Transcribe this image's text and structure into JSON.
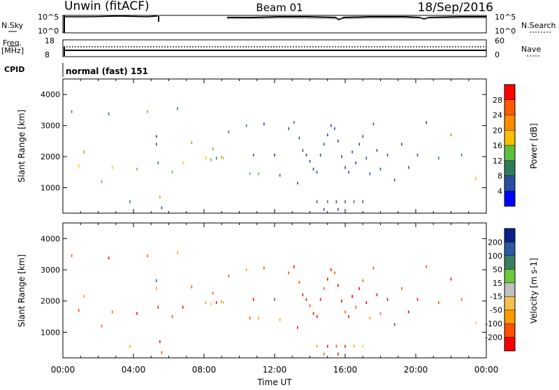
{
  "header": {
    "station": "Unwin (fitACF)",
    "beam": "Beam 01",
    "date": "18/Sep/2016"
  },
  "top_panels": {
    "nsky_label": "N.Sky",
    "nsky_ticks": [
      "10^5",
      "10^0"
    ],
    "nsearch_label": "N.Search",
    "nsearch_ticks": [
      "10^5",
      "10^0"
    ],
    "freq_label": "Freq.",
    "freq_unit": "[MHz]",
    "freq_ticks": [
      "18",
      "8"
    ],
    "nave_label": "Nave",
    "nave_ticks": [
      "60",
      "0"
    ],
    "cpid_label": "CPID",
    "cpid_text": "normal (fast) 151"
  },
  "colors": {
    "power": [
      "#0000ff",
      "#2a4fa0",
      "#2e7d5a",
      "#5fbf3f",
      "#f5c000",
      "#ff8c00",
      "#ff5a00",
      "#ff0000"
    ],
    "velocity": [
      "#ff0000",
      "#ff5000",
      "#ff9a00",
      "#f5c050",
      "#c0c0c0",
      "#6ac93c",
      "#3a8060",
      "#2a5aa0",
      "#0a1f8a"
    ]
  },
  "chart_data": [
    {
      "type": "heatmap",
      "name": "Power",
      "xlabel": "",
      "ylabel": "Slant Range [km]",
      "x_ticks": [
        "00:00",
        "04:00",
        "08:00",
        "12:00",
        "16:00",
        "20:00",
        "00:00"
      ],
      "xlim": [
        0,
        24
      ],
      "ylim": [
        180,
        4500
      ],
      "y_ticks": [
        1000,
        2000,
        3000,
        4000
      ],
      "colorbar_label": "Power [dB]",
      "colorbar_ticks": [
        "4",
        "8",
        "12",
        "16",
        "20",
        "24",
        "28"
      ],
      "points": [
        [
          0.5,
          3450,
          2
        ],
        [
          0.9,
          1700,
          4
        ],
        [
          1.2,
          2150,
          3
        ],
        [
          2.2,
          1200,
          3
        ],
        [
          2.6,
          3380,
          2
        ],
        [
          2.8,
          1650,
          4
        ],
        [
          3.8,
          550,
          2
        ],
        [
          4.2,
          1600,
          3
        ],
        [
          4.8,
          3450,
          3
        ],
        [
          5.3,
          2650,
          1
        ],
        [
          5.3,
          2400,
          1
        ],
        [
          5.4,
          1800,
          2
        ],
        [
          5.6,
          350,
          1
        ],
        [
          5.5,
          700,
          5
        ],
        [
          6.2,
          1500,
          3
        ],
        [
          6.5,
          3550,
          2
        ],
        [
          6.8,
          1800,
          4
        ],
        [
          7.3,
          2450,
          3
        ],
        [
          8.1,
          1950,
          4
        ],
        [
          8.4,
          1900,
          3
        ],
        [
          8.5,
          2250,
          3
        ],
        [
          8.7,
          1950,
          2
        ],
        [
          9.0,
          1980,
          3
        ],
        [
          9.1,
          1950,
          4
        ],
        [
          9.4,
          2800,
          2
        ],
        [
          10.4,
          3000,
          2
        ],
        [
          10.6,
          1450,
          3
        ],
        [
          10.8,
          2050,
          1
        ],
        [
          11.1,
          1450,
          3
        ],
        [
          11.4,
          3050,
          1
        ],
        [
          12.0,
          2050,
          1
        ],
        [
          12.3,
          1400,
          1
        ],
        [
          12.8,
          2900,
          1
        ],
        [
          13.1,
          3100,
          2
        ],
        [
          13.3,
          1150,
          1
        ],
        [
          13.4,
          2600,
          1
        ],
        [
          13.6,
          2200,
          1
        ],
        [
          13.8,
          2050,
          1
        ],
        [
          14.0,
          1850,
          1
        ],
        [
          14.2,
          1600,
          1
        ],
        [
          14.4,
          1500,
          1
        ],
        [
          14.6,
          2050,
          1
        ],
        [
          14.8,
          2400,
          1
        ],
        [
          15.0,
          2700,
          1
        ],
        [
          15.2,
          3000,
          1
        ],
        [
          15.4,
          2900,
          1
        ],
        [
          15.6,
          2500,
          1
        ],
        [
          15.8,
          2000,
          1
        ],
        [
          16.0,
          1650,
          1
        ],
        [
          16.2,
          1500,
          1
        ],
        [
          16.4,
          2150,
          1
        ],
        [
          16.6,
          1800,
          1
        ],
        [
          16.8,
          2400,
          1
        ],
        [
          17.0,
          2650,
          1
        ],
        [
          17.2,
          1950,
          1
        ],
        [
          17.4,
          1450,
          1
        ],
        [
          17.6,
          3050,
          1
        ],
        [
          17.8,
          2200,
          1
        ],
        [
          18.0,
          1600,
          1
        ],
        [
          18.4,
          2050,
          1
        ],
        [
          18.8,
          1250,
          1
        ],
        [
          19.2,
          2400,
          1
        ],
        [
          19.6,
          1650,
          1
        ],
        [
          20.1,
          2050,
          1
        ],
        [
          20.6,
          3100,
          1
        ],
        [
          21.3,
          1950,
          2
        ],
        [
          22.0,
          2700,
          3
        ],
        [
          22.6,
          2050,
          2
        ],
        [
          23.4,
          1300,
          4
        ],
        [
          14.4,
          550,
          1
        ],
        [
          15.0,
          550,
          2
        ],
        [
          15.5,
          550,
          1
        ],
        [
          16.0,
          550,
          1
        ],
        [
          16.5,
          550,
          2
        ],
        [
          17.0,
          550,
          1
        ],
        [
          14.8,
          300,
          1
        ],
        [
          15.6,
          300,
          1
        ]
      ]
    },
    {
      "type": "heatmap",
      "name": "Velocity",
      "xlabel": "Time UT",
      "ylabel": "Slant Range [km]",
      "x_ticks": [
        "00:00",
        "04:00",
        "08:00",
        "12:00",
        "16:00",
        "20:00",
        "00:00"
      ],
      "xlim": [
        0,
        24
      ],
      "ylim": [
        180,
        4500
      ],
      "y_ticks": [
        1000,
        2000,
        3000,
        4000
      ],
      "colorbar_label": "Velocity [m s-1]",
      "colorbar_ticks": [
        "-200",
        "-100",
        "-50",
        "-15",
        "15",
        "50",
        "100",
        "200"
      ],
      "points": [
        [
          0.5,
          3450,
          1
        ],
        [
          0.9,
          1700,
          1
        ],
        [
          1.2,
          2150,
          2
        ],
        [
          2.2,
          1200,
          1
        ],
        [
          2.6,
          3380,
          0
        ],
        [
          2.8,
          1650,
          1
        ],
        [
          3.8,
          550,
          2
        ],
        [
          4.2,
          1600,
          0
        ],
        [
          4.8,
          3450,
          1
        ],
        [
          5.3,
          2650,
          7
        ],
        [
          5.3,
          2400,
          2
        ],
        [
          5.4,
          1800,
          0
        ],
        [
          5.6,
          350,
          1
        ],
        [
          5.5,
          700,
          0
        ],
        [
          6.2,
          1500,
          1
        ],
        [
          6.5,
          3550,
          2
        ],
        [
          6.8,
          1800,
          0
        ],
        [
          7.3,
          2450,
          1
        ],
        [
          8.1,
          1950,
          2
        ],
        [
          8.4,
          1900,
          3
        ],
        [
          8.5,
          2250,
          1
        ],
        [
          8.7,
          1950,
          0
        ],
        [
          9.0,
          1980,
          2
        ],
        [
          9.1,
          1950,
          3
        ],
        [
          9.4,
          2800,
          1
        ],
        [
          10.4,
          3000,
          2
        ],
        [
          10.6,
          1450,
          1
        ],
        [
          10.8,
          2050,
          0
        ],
        [
          11.1,
          1450,
          2
        ],
        [
          11.4,
          3050,
          1
        ],
        [
          12.0,
          2050,
          7
        ],
        [
          12.3,
          1400,
          2
        ],
        [
          12.8,
          2900,
          1
        ],
        [
          13.1,
          3100,
          0
        ],
        [
          13.3,
          1150,
          0
        ],
        [
          13.4,
          2600,
          1
        ],
        [
          13.6,
          2200,
          0
        ],
        [
          13.8,
          2050,
          0
        ],
        [
          14.0,
          1850,
          1
        ],
        [
          14.2,
          1600,
          0
        ],
        [
          14.4,
          1500,
          0
        ],
        [
          14.6,
          2050,
          0
        ],
        [
          14.8,
          2400,
          1
        ],
        [
          15.0,
          2700,
          0
        ],
        [
          15.2,
          3000,
          0
        ],
        [
          15.4,
          2900,
          1
        ],
        [
          15.6,
          2500,
          0
        ],
        [
          15.8,
          2000,
          0
        ],
        [
          16.0,
          1650,
          1
        ],
        [
          16.2,
          1500,
          0
        ],
        [
          16.4,
          2150,
          0
        ],
        [
          16.6,
          1800,
          1
        ],
        [
          16.8,
          2400,
          0
        ],
        [
          17.0,
          2650,
          1
        ],
        [
          17.2,
          1950,
          0
        ],
        [
          17.4,
          1450,
          2
        ],
        [
          17.6,
          3050,
          1
        ],
        [
          17.8,
          2200,
          0
        ],
        [
          18.0,
          1600,
          1
        ],
        [
          18.4,
          2050,
          0
        ],
        [
          18.8,
          1250,
          7
        ],
        [
          19.2,
          2400,
          1
        ],
        [
          19.6,
          1650,
          0
        ],
        [
          20.1,
          2050,
          0
        ],
        [
          20.6,
          3100,
          1
        ],
        [
          21.3,
          1950,
          1
        ],
        [
          22.0,
          2700,
          0
        ],
        [
          22.6,
          2050,
          1
        ],
        [
          23.4,
          1300,
          3
        ],
        [
          14.4,
          550,
          2
        ],
        [
          15.0,
          550,
          0
        ],
        [
          15.5,
          550,
          1
        ],
        [
          16.0,
          550,
          0
        ],
        [
          16.5,
          550,
          2
        ],
        [
          17.0,
          550,
          3
        ],
        [
          14.8,
          300,
          1
        ],
        [
          15.6,
          300,
          0
        ]
      ]
    }
  ]
}
